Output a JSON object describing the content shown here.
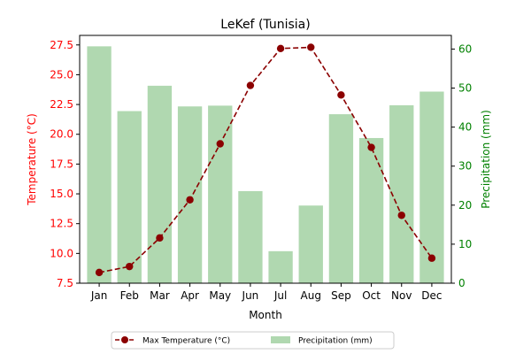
{
  "chart_data": {
    "type": "bar+line",
    "title": "LeKef (Tunisia)",
    "xlabel": "Month",
    "categories": [
      "Jan",
      "Feb",
      "Mar",
      "Apr",
      "May",
      "Jun",
      "Jul",
      "Aug",
      "Sep",
      "Oct",
      "Nov",
      "Dec"
    ],
    "left_axis": {
      "label": "Temperature (°C)",
      "color": "#ff0000",
      "ylim": [
        7.5,
        28.3
      ],
      "ticks": [
        "7.5",
        "10.0",
        "12.5",
        "15.0",
        "17.5",
        "20.0",
        "22.5",
        "25.0",
        "27.5"
      ]
    },
    "right_axis": {
      "label": "Precipitation (mm)",
      "color": "#008000",
      "ylim": [
        0,
        63.5
      ],
      "ticks": [
        "0",
        "10",
        "20",
        "30",
        "40",
        "50",
        "60"
      ]
    },
    "series": [
      {
        "name": "Max Temperature (°C)",
        "kind": "line",
        "axis": "left",
        "color": "#8b0000",
        "values": [
          8.4,
          8.9,
          11.3,
          14.5,
          19.2,
          24.1,
          27.2,
          27.3,
          23.3,
          18.9,
          13.2,
          9.6
        ]
      },
      {
        "name": "Precipitation (mm)",
        "kind": "bar",
        "axis": "right",
        "color": "#b0d8b0",
        "values": [
          60.7,
          44.1,
          50.6,
          45.3,
          45.5,
          23.6,
          8.2,
          19.9,
          43.3,
          37.2,
          45.6,
          49.1
        ]
      }
    ],
    "legend": {
      "placement": "bottom-center"
    },
    "grid": false
  }
}
